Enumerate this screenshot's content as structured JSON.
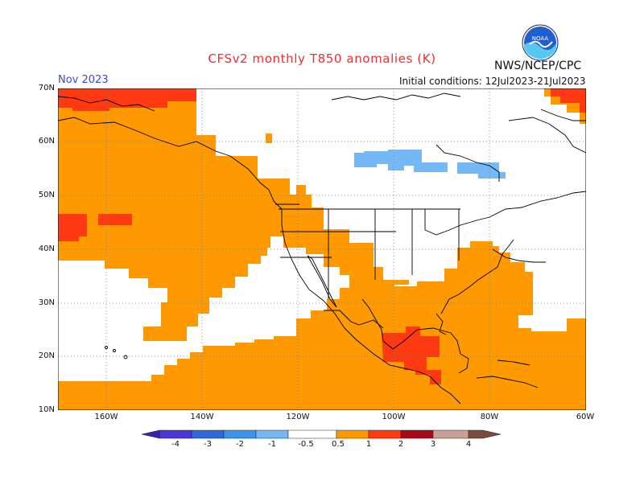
{
  "title": "CFSv2 monthly T850 anomalies (K)",
  "agency": "NWS/NCEP/CPC",
  "month_label": "Nov 2023",
  "initial_conditions": "Initial conditions:  12Jul2023-21Jul2023",
  "logo_text": "NOAA",
  "map": {
    "region": "North America and North Pacific",
    "lat_range": [
      10,
      70
    ],
    "lon_range": [
      -170,
      -60
    ],
    "lat_labels": [
      "70N",
      "60N",
      "50N",
      "40N",
      "30N",
      "20N",
      "10N"
    ],
    "lon_labels": [
      "160W",
      "140W",
      "120W",
      "100W",
      "80W",
      "60W"
    ],
    "grid": "dotted every 10 degrees",
    "boundaries": "coastlines, country and state borders"
  },
  "colorbar": {
    "tick_labels": [
      "-4",
      "-3",
      "-2",
      "-1",
      "-0.5",
      "0.5",
      "1",
      "2",
      "3",
      "4"
    ],
    "colors": [
      "#3b22b0",
      "#4838d6",
      "#2f68d8",
      "#3c94ec",
      "#74b8f6",
      "#ffffff",
      "#ff9900",
      "#ff3a12",
      "#a50a18",
      "#c8a098",
      "#7a4a3c"
    ]
  },
  "anomaly_regions": [
    {
      "name": "Warm anomaly (+0.5 to +1 K)",
      "color": "#ff9900",
      "areas": [
        "North Pacific",
        "Western North America",
        "Southern United States",
        "Mexico",
        "Caribbean",
        "Gulf of Mexico",
        "Tropical East Pacific"
      ]
    },
    {
      "name": "Warm anomaly (+1 to +2 K)",
      "color": "#ff3a12",
      "areas": [
        "Bering Strait / Alaska north coast",
        "Mid-latitude North Pacific",
        "Southern Mexico",
        "Northeast Canada edge"
      ]
    },
    {
      "name": "Cool anomaly (-1 to -0.5 K)",
      "color": "#74b8f6",
      "areas": [
        "Central Canada / Hudson Bay region"
      ]
    }
  ]
}
